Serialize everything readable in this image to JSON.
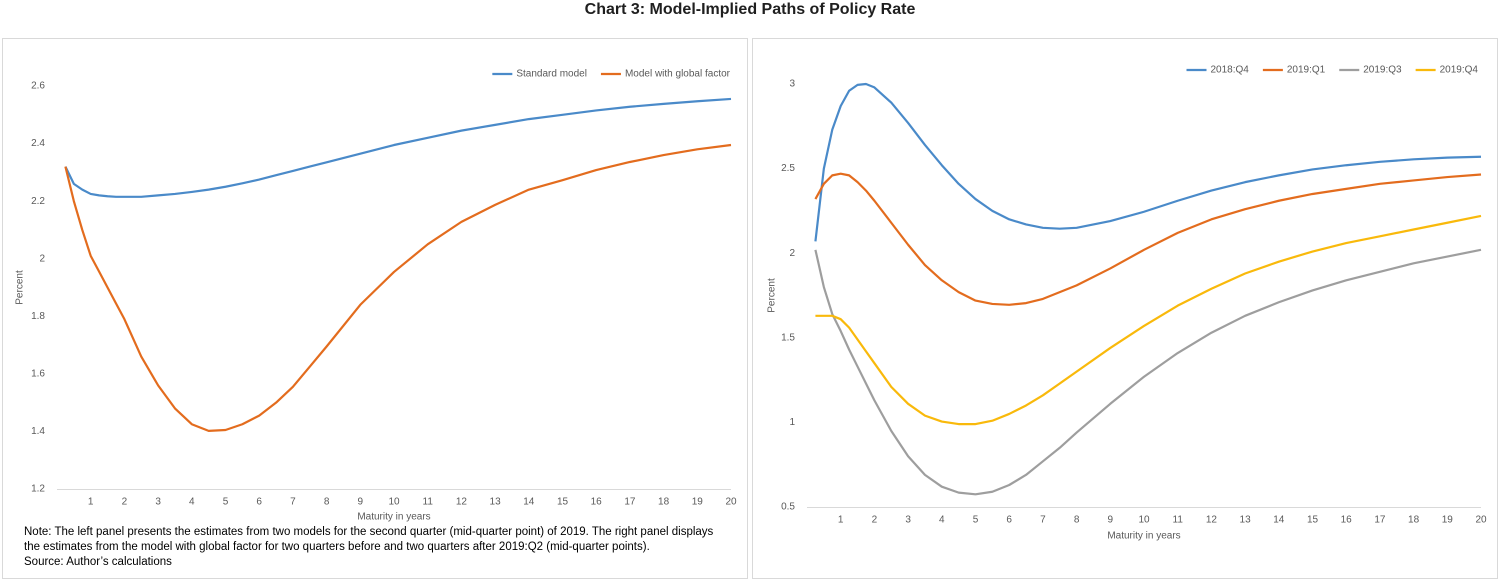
{
  "title": "Chart 3: Model-Implied Paths of Policy Rate",
  "note": "Note: The left panel presents the estimates from two models for the second quarter (mid-quarter point) of 2019. The right panel displays the estimates from the model with global factor for two quarters before and two quarters after 2019:Q2 (mid-quarter points).",
  "source": "Source: Author’s calculations",
  "chart_data": [
    {
      "type": "line",
      "xlabel": "Maturity in years",
      "ylabel": "Percent",
      "x": [
        0.25,
        0.5,
        0.75,
        1,
        1.25,
        1.5,
        1.75,
        2,
        2.5,
        3,
        3.5,
        4,
        4.5,
        5,
        5.5,
        6,
        6.5,
        7,
        7.5,
        8,
        9,
        10,
        11,
        12,
        13,
        14,
        15,
        16,
        17,
        18,
        19,
        20
      ],
      "xlim": [
        0,
        20
      ],
      "xticks": [
        1,
        2,
        3,
        4,
        5,
        6,
        7,
        8,
        9,
        10,
        11,
        12,
        13,
        14,
        15,
        16,
        17,
        18,
        19,
        20
      ],
      "ylim": [
        1.2,
        2.6
      ],
      "yticks": [
        1.2,
        1.4,
        1.6,
        1.8,
        2,
        2.2,
        2.4,
        2.6
      ],
      "grid": false,
      "legend": "top-right",
      "series": [
        {
          "name": "Standard model",
          "color": "#4a8ac9",
          "values": [
            2.32,
            2.26,
            2.24,
            2.225,
            2.22,
            2.217,
            2.215,
            2.215,
            2.215,
            2.22,
            2.225,
            2.232,
            2.24,
            2.25,
            2.262,
            2.275,
            2.29,
            2.305,
            2.32,
            2.335,
            2.365,
            2.395,
            2.42,
            2.445,
            2.465,
            2.485,
            2.5,
            2.515,
            2.528,
            2.538,
            2.547,
            2.555
          ]
        },
        {
          "name": "Model with global factor",
          "color": "#e36c1e",
          "values": [
            2.32,
            2.2,
            2.1,
            2.01,
            1.955,
            1.9,
            1.845,
            1.79,
            1.66,
            1.56,
            1.48,
            1.425,
            1.402,
            1.405,
            1.425,
            1.455,
            1.5,
            1.555,
            1.625,
            1.695,
            1.84,
            1.954,
            2.05,
            2.128,
            2.187,
            2.24,
            2.273,
            2.308,
            2.336,
            2.36,
            2.38,
            2.395
          ]
        }
      ]
    },
    {
      "type": "line",
      "xlabel": "Maturity in years",
      "ylabel": "Percent",
      "x": [
        0.25,
        0.5,
        0.75,
        1,
        1.25,
        1.5,
        1.75,
        2,
        2.5,
        3,
        3.5,
        4,
        4.5,
        5,
        5.5,
        6,
        6.5,
        7,
        7.5,
        8,
        9,
        10,
        11,
        12,
        13,
        14,
        15,
        16,
        17,
        18,
        19,
        20
      ],
      "xlim": [
        0,
        20
      ],
      "xticks": [
        1,
        2,
        3,
        4,
        5,
        6,
        7,
        8,
        9,
        10,
        11,
        12,
        13,
        14,
        15,
        16,
        17,
        18,
        19,
        20
      ],
      "ylim": [
        0.5,
        3
      ],
      "yticks": [
        0.5,
        1,
        1.5,
        2,
        2.5,
        3
      ],
      "grid": false,
      "legend": "top-right",
      "series": [
        {
          "name": "2018:Q4",
          "color": "#4a8ac9",
          "values": [
            2.07,
            2.5,
            2.73,
            2.87,
            2.96,
            2.995,
            3.0,
            2.98,
            2.89,
            2.77,
            2.64,
            2.52,
            2.41,
            2.32,
            2.25,
            2.2,
            2.17,
            2.15,
            2.145,
            2.15,
            2.19,
            2.245,
            2.31,
            2.37,
            2.42,
            2.46,
            2.495,
            2.52,
            2.54,
            2.555,
            2.565,
            2.57
          ]
        },
        {
          "name": "2019:Q1",
          "color": "#e36c1e",
          "values": [
            2.32,
            2.41,
            2.46,
            2.47,
            2.46,
            2.42,
            2.37,
            2.31,
            2.18,
            2.05,
            1.93,
            1.84,
            1.77,
            1.72,
            1.7,
            1.695,
            1.705,
            1.73,
            1.77,
            1.81,
            1.91,
            2.02,
            2.12,
            2.2,
            2.26,
            2.31,
            2.35,
            2.38,
            2.41,
            2.43,
            2.45,
            2.465
          ]
        },
        {
          "name": "2019:Q3",
          "color": "#9e9e9e",
          "values": [
            2.02,
            1.8,
            1.64,
            1.54,
            1.43,
            1.33,
            1.23,
            1.13,
            0.95,
            0.8,
            0.69,
            0.62,
            0.585,
            0.575,
            0.59,
            0.63,
            0.69,
            0.77,
            0.85,
            0.94,
            1.11,
            1.27,
            1.41,
            1.53,
            1.63,
            1.71,
            1.78,
            1.84,
            1.89,
            1.94,
            1.98,
            2.02
          ]
        },
        {
          "name": "2019:Q4",
          "color": "#f9b90b",
          "values": [
            1.63,
            1.63,
            1.63,
            1.61,
            1.56,
            1.49,
            1.42,
            1.35,
            1.21,
            1.11,
            1.04,
            1.005,
            0.99,
            0.99,
            1.01,
            1.05,
            1.1,
            1.16,
            1.23,
            1.3,
            1.44,
            1.57,
            1.69,
            1.79,
            1.88,
            1.95,
            2.01,
            2.06,
            2.1,
            2.14,
            2.18,
            2.22
          ]
        }
      ]
    }
  ]
}
